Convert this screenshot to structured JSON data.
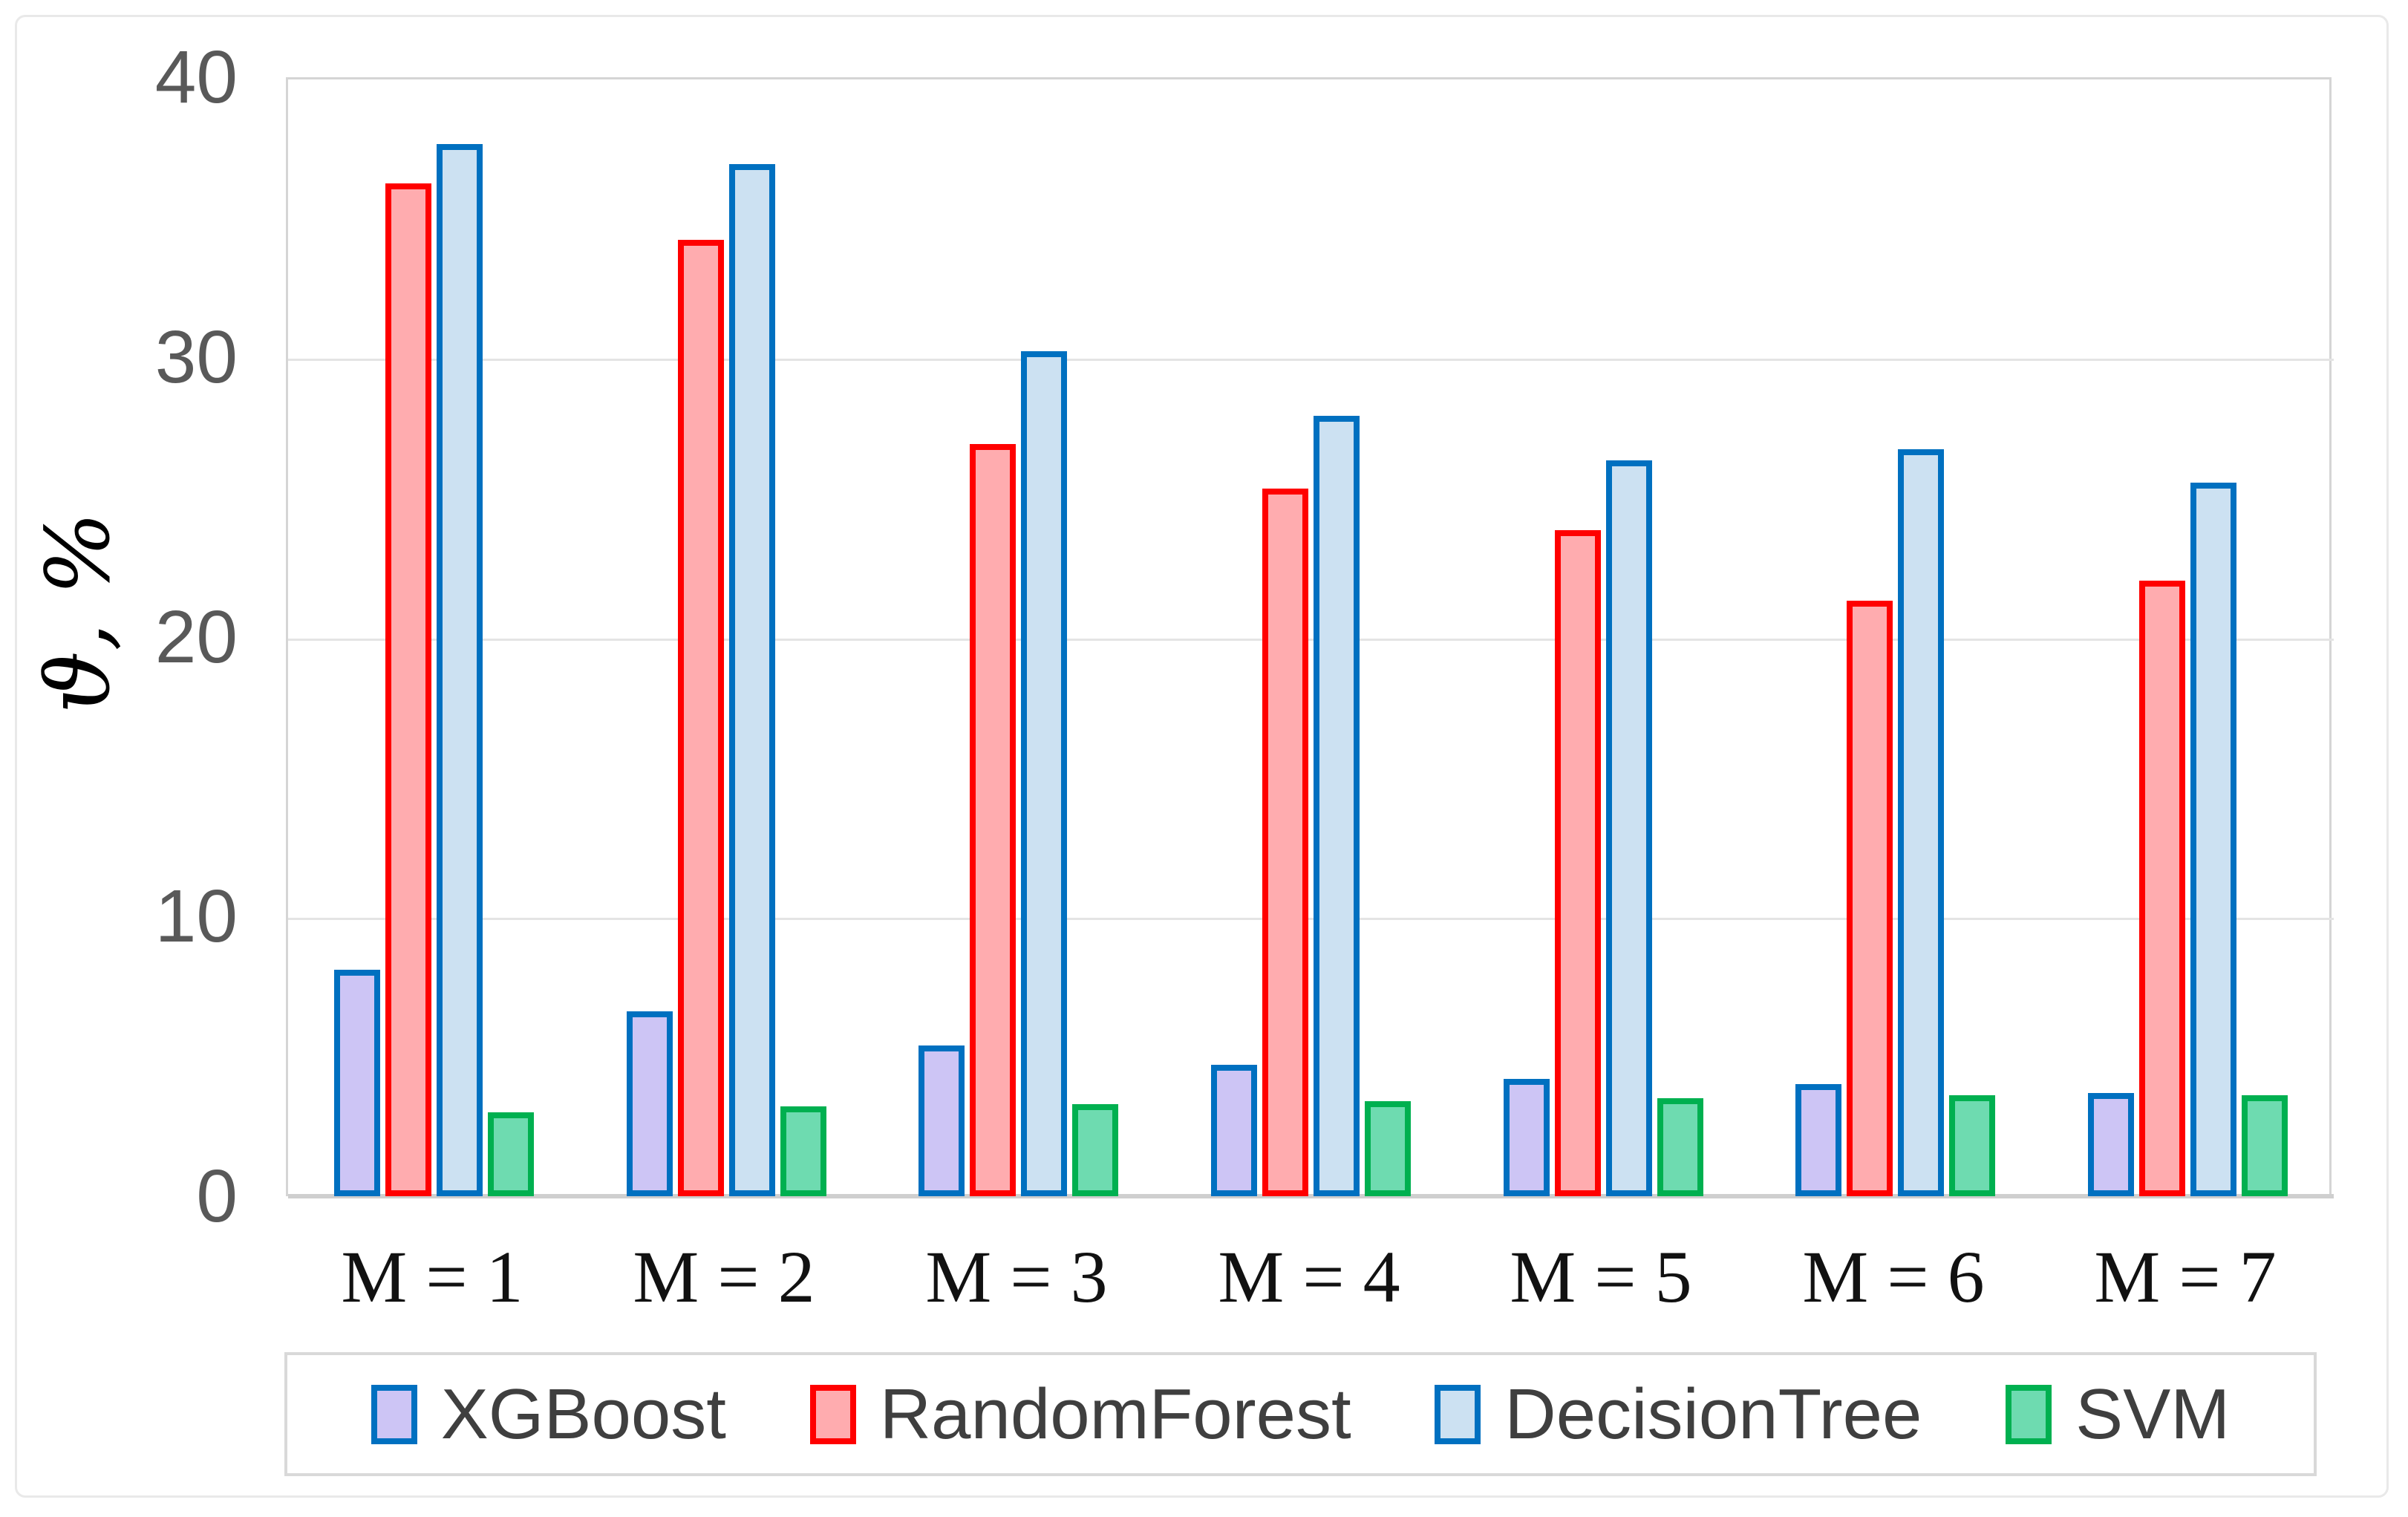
{
  "figure": {
    "background_color": "#FFFFFF",
    "frame_border_color": "#E9E9E9"
  },
  "y_axis": {
    "label": "ϑ, %",
    "tick_labels": [
      "0",
      "10",
      "20",
      "30",
      "40"
    ],
    "tick_color": "#595959",
    "gridline_color": "#E4E4E4",
    "axis_line_color": "#CFCFCF"
  },
  "x_axis": {
    "labels": [
      "M = 1",
      "M = 2",
      "M = 3",
      "M = 4",
      "M = 5",
      "M = 6",
      "M = 7"
    ]
  },
  "chart_data": {
    "type": "bar",
    "title": "",
    "xlabel": "",
    "ylabel": "ϑ, %",
    "ylim": [
      0,
      40
    ],
    "yticks": [
      0,
      10,
      20,
      30,
      40
    ],
    "grid": true,
    "legend_position": "bottom",
    "categories": [
      "M = 1",
      "M = 2",
      "M = 3",
      "M = 4",
      "M = 5",
      "M = 6",
      "M = 7"
    ],
    "series": [
      {
        "name": "XGBoost",
        "values": [
          8.1,
          6.6,
          5.4,
          4.7,
          4.2,
          4.0,
          3.7
        ],
        "fill": "#CDC5F5",
        "stroke": "#0070C0"
      },
      {
        "name": "RandomForest",
        "values": [
          36.2,
          34.2,
          26.9,
          25.3,
          23.8,
          21.3,
          22.0
        ],
        "fill": "#FFACAF",
        "stroke": "#FF0000"
      },
      {
        "name": "DecisionTree",
        "values": [
          37.6,
          36.9,
          30.2,
          27.9,
          26.3,
          26.7,
          25.5
        ],
        "fill": "#CCE1F2",
        "stroke": "#0070C0"
      },
      {
        "name": "SVM",
        "values": [
          3.0,
          3.2,
          3.3,
          3.4,
          3.5,
          3.6,
          3.6
        ],
        "fill": "#6EDBB0",
        "stroke": "#00B050"
      }
    ]
  }
}
